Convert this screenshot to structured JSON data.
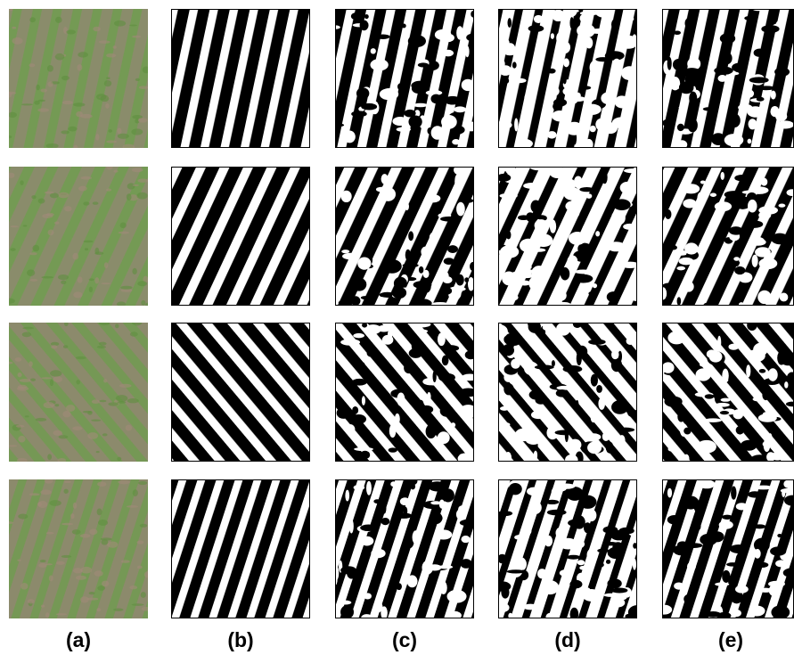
{
  "labels": [
    "(a)",
    "(b)",
    "(c)",
    "(d)",
    "(e)"
  ]
}
